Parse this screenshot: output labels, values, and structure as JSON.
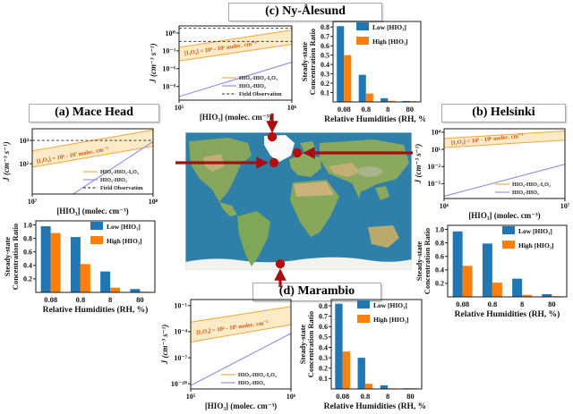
{
  "figure": {
    "titles": {
      "a": "(a) Mace Head",
      "b": "(b) Helsinki",
      "c": "(c) Ny-Ålesund",
      "d": "(d) Marambio"
    },
    "map_sites": [
      "Mace Head",
      "Helsinki",
      "Ny-Ålesund",
      "Marambio"
    ]
  },
  "colors": {
    "low_bar": "#2077b4",
    "high_bar": "#ff7f0e",
    "band_fill": "#fdeac6",
    "band_edge": "#f0a73a",
    "blue_line": "#8d8de4",
    "annotation": "#c55a11",
    "dashed": "#222222",
    "axis": "#1a1a1a",
    "arrow": "#a50f0f",
    "ocean": "#2f80a9"
  },
  "chart_data": [
    {
      "id": "mace-head-rates",
      "site": "Mace Head",
      "type": "line",
      "xlabel": "[HIO₃] (molec. cm⁻³)",
      "ylabel": "J (cm⁻³ s⁻¹)",
      "xlog_range": [
        7,
        8
      ],
      "ylog_range": [
        -0.6,
        5.0
      ],
      "xtick_exponents": [
        7,
        8
      ],
      "ytick_exponents": [
        4,
        2
      ],
      "band": {
        "upper": [
          [
            7,
            3.1
          ],
          [
            8,
            4.9
          ]
        ],
        "lower": [
          [
            7,
            1.7
          ],
          [
            8,
            3.5
          ]
        ]
      },
      "blue_line": [
        [
          7,
          -2.9
        ],
        [
          8,
          3.9
        ]
      ],
      "dashed_levels": [
        4.0
      ],
      "annotation": {
        "text": "[I₂O₄] = 10⁶ - 10⁷ molec. cm⁻³",
        "x": 7.04,
        "y": 2.05,
        "rot": -10
      },
      "legend": [
        {
          "label": "HIO₃-HIO₂-I₂O₄",
          "key": "band_edge",
          "dash": false
        },
        {
          "label": "HIO₃-HIO₂",
          "key": "blue_line",
          "dash": false
        },
        {
          "label": "Field Observation",
          "key": "dashed",
          "dash": true
        }
      ]
    },
    {
      "id": "mace-head-ratio",
      "site": "Mace Head",
      "type": "bar",
      "categories": [
        "0.08",
        "0.8",
        "8",
        "80"
      ],
      "series": [
        {
          "name": "Low [HIO₃]",
          "color_key": "low_bar",
          "values": [
            0.98,
            0.82,
            0.31,
            0.05
          ]
        },
        {
          "name": "High [HIO₃]",
          "color_key": "high_bar",
          "values": [
            0.88,
            0.42,
            0.07,
            0.01
          ]
        }
      ],
      "ymax": 1.06,
      "yticks": [
        0.2,
        0.4,
        0.6,
        0.8,
        1.0
      ],
      "xlabel": "Relative Humidities (RH, %)",
      "ylabel_lines": [
        "Steady-state",
        "Concentration Ratio"
      ]
    },
    {
      "id": "helsinki-rates",
      "site": "Helsinki",
      "type": "line",
      "xlabel": "[HIO₃] (molec. cm⁻³)",
      "ylabel": "J (cm⁻³ s⁻¹)",
      "xlog_range": [
        6,
        7
      ],
      "ylog_range": [
        -7.6,
        4.6
      ],
      "xtick_exponents": [
        6,
        7
      ],
      "ytick_exponents": [
        4,
        1,
        -2,
        -5
      ],
      "band": {
        "upper": [
          [
            6,
            2.9
          ],
          [
            7,
            4.2
          ]
        ],
        "lower": [
          [
            6,
            1.3
          ],
          [
            7,
            2.6
          ]
        ]
      },
      "blue_line": [
        [
          6,
          -7.2
        ],
        [
          7,
          -1.6
        ]
      ],
      "dashed_levels": [],
      "annotation": {
        "text": "[I₂O₄] = 10⁵ - 10⁶ molec. cm⁻³",
        "x": 6.06,
        "y": 1.8,
        "rot": -6
      },
      "legend": [
        {
          "label": "HIO₃-HIO₂-I₂O₄",
          "key": "band_edge",
          "dash": false
        },
        {
          "label": "HIO₃-HIO₂",
          "key": "blue_line",
          "dash": false
        }
      ]
    },
    {
      "id": "helsinki-ratio",
      "site": "Helsinki",
      "type": "bar",
      "categories": [
        "0.08",
        "0.8",
        "8",
        "80"
      ],
      "series": [
        {
          "name": "Low [HIO₃]",
          "color_key": "low_bar",
          "values": [
            0.97,
            0.79,
            0.27,
            0.04
          ]
        },
        {
          "name": "High [HIO₃]",
          "color_key": "high_bar",
          "values": [
            0.46,
            0.21,
            0.03,
            0.01
          ]
        }
      ],
      "ymax": 1.06,
      "yticks": [
        0.2,
        0.4,
        0.6,
        0.8,
        1.0
      ],
      "xlabel": "Relative Humidities (RH, %)",
      "ylabel_lines": [
        "Steady-state",
        "Concentration Ratio"
      ]
    },
    {
      "id": "ny-alesund-rates",
      "site": "Ny-Ålesund",
      "type": "line",
      "xlabel": "[HIO₃] (molec. cm⁻³)",
      "ylabel": "J (cm⁻³ s⁻¹)",
      "xlog_range": [
        5,
        6
      ],
      "ylog_range": [
        -11.3,
        1.2
      ],
      "xtick_exponents": [
        5,
        6
      ],
      "ytick_exponents": [
        0,
        -3,
        -6,
        -9
      ],
      "band": {
        "upper": [
          [
            5,
            -2.4
          ],
          [
            6,
            0.5
          ]
        ],
        "lower": [
          [
            5,
            -4.7
          ],
          [
            6,
            -1.9
          ]
        ]
      },
      "blue_line": [
        [
          5,
          -10.7
        ],
        [
          6,
          -4.9
        ]
      ],
      "dashed_levels": [
        0.8,
        -1.4
      ],
      "annotation": {
        "text": "[I₂O₄] = 10⁴ - 10⁵ molec. cm⁻³",
        "x": 5.05,
        "y": -3.7,
        "rot": -8
      },
      "legend": [
        {
          "label": "HIO₃-HIO₂-I₂O₄",
          "key": "band_edge",
          "dash": false
        },
        {
          "label": "HIO₃-HIO₂",
          "key": "blue_line",
          "dash": false
        },
        {
          "label": "Field Observation",
          "key": "dashed",
          "dash": true
        }
      ]
    },
    {
      "id": "ny-alesund-ratio",
      "site": "Ny-Ålesund",
      "type": "bar",
      "categories": [
        "0.08",
        "0.8",
        "8",
        "80"
      ],
      "series": [
        {
          "name": "Low [HIO₃]",
          "color_key": "low_bar",
          "values": [
            0.81,
            0.29,
            0.04,
            0.01
          ]
        },
        {
          "name": "High [HIO₃]",
          "color_key": "high_bar",
          "values": [
            0.5,
            0.09,
            0.012,
            0.004
          ]
        }
      ],
      "ymax": 0.86,
      "yticks": [
        0.1,
        0.2,
        0.3,
        0.4,
        0.5,
        0.6,
        0.7,
        0.8
      ],
      "xlabel": "Relative Humidities (RH, %)",
      "ylabel_lines": [
        "Steady-state",
        "Concentration Ratio"
      ]
    },
    {
      "id": "marambio-rates",
      "site": "Marambio",
      "type": "line",
      "xlabel": "[HIO₃] (molec. cm⁻³)",
      "ylabel": "J (cm⁻³ s⁻¹)",
      "xlog_range": [
        5,
        6
      ],
      "ylog_range": [
        -10.6,
        -0.3
      ],
      "xtick_exponents": [
        5,
        6
      ],
      "ytick_exponents": [
        -1,
        -4,
        -7,
        -10
      ],
      "band": {
        "upper": [
          [
            5,
            -2.9
          ],
          [
            6,
            -1.1
          ]
        ],
        "lower": [
          [
            5,
            -5.2
          ],
          [
            6,
            -3.2
          ]
        ]
      },
      "blue_line": [
        [
          5,
          -10.2
        ],
        [
          6,
          -4.2
        ]
      ],
      "dashed_levels": [],
      "annotation": {
        "text": "[I₂O₄] = 10⁴ - 10⁵ molec. cm⁻³",
        "x": 5.06,
        "y": -4.3,
        "rot": -8
      },
      "legend": [
        {
          "label": "HIO₃-HIO₂-I₂O₄",
          "key": "band_edge",
          "dash": false
        },
        {
          "label": "HIO₃-HIO₂",
          "key": "blue_line",
          "dash": false
        }
      ]
    },
    {
      "id": "marambio-ratio",
      "site": "Marambio",
      "type": "bar",
      "categories": [
        "0.08",
        "0.8",
        "8",
        "80"
      ],
      "series": [
        {
          "name": "Low [HIO₃]",
          "color_key": "low_bar",
          "values": [
            0.82,
            0.3,
            0.035,
            0.006
          ]
        },
        {
          "name": "High [HIO₃]",
          "color_key": "high_bar",
          "values": [
            0.36,
            0.05,
            0.006,
            0.002
          ]
        }
      ],
      "ymax": 0.86,
      "yticks": [
        0.1,
        0.2,
        0.3,
        0.4,
        0.5,
        0.6,
        0.7,
        0.8
      ],
      "xlabel": "Relative Humidities (RH, %)",
      "ylabel_lines": [
        "Steady-state",
        "Concentration Ratio"
      ]
    }
  ]
}
